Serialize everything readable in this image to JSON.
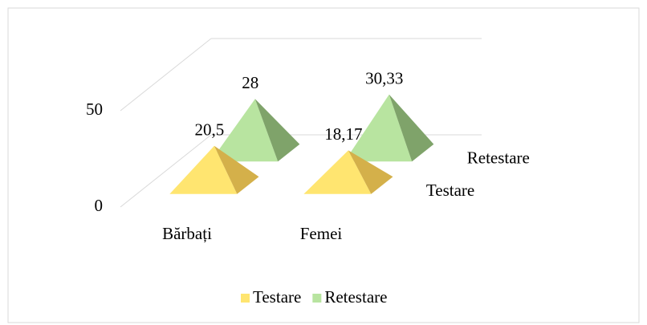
{
  "chart_data": {
    "type": "pyramid3d",
    "categories": [
      "Bărbați",
      "Femei"
    ],
    "series": [
      {
        "name": "Testare",
        "color": "#ffe570",
        "values": [
          20.5,
          18.17
        ],
        "value_labels": [
          "20,5",
          "18,17"
        ]
      },
      {
        "name": "Retestare",
        "color": "#b8e4a0",
        "values": [
          28,
          30.33
        ],
        "value_labels": [
          "28",
          "30,33"
        ]
      }
    ],
    "ylim": [
      0,
      50
    ],
    "yticks": [
      0,
      50
    ],
    "grid": true,
    "legend": "bottom"
  }
}
